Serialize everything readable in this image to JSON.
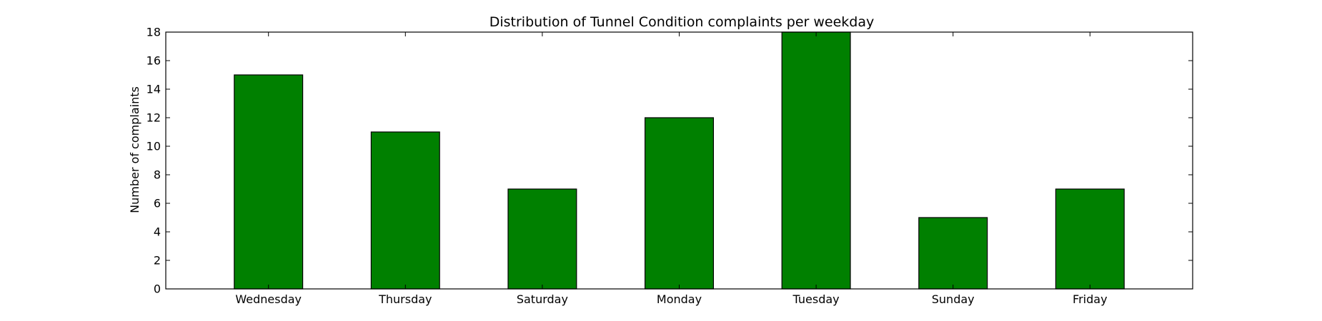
{
  "chart_data": {
    "type": "bar",
    "title": "Distribution of  Tunnel Condition complaints per weekday",
    "xlabel": "",
    "ylabel": "Number of complaints",
    "categories": [
      "Wednesday",
      "Thursday",
      "Saturday",
      "Monday",
      "Tuesday",
      "Sunday",
      "Friday"
    ],
    "values": [
      15,
      11,
      7,
      12,
      18,
      5,
      7
    ],
    "ylim": [
      0,
      18
    ],
    "yticks": [
      0,
      2,
      4,
      6,
      8,
      10,
      12,
      14,
      16,
      18
    ],
    "grid": false,
    "legend": "none",
    "bar_color": "#008000"
  }
}
